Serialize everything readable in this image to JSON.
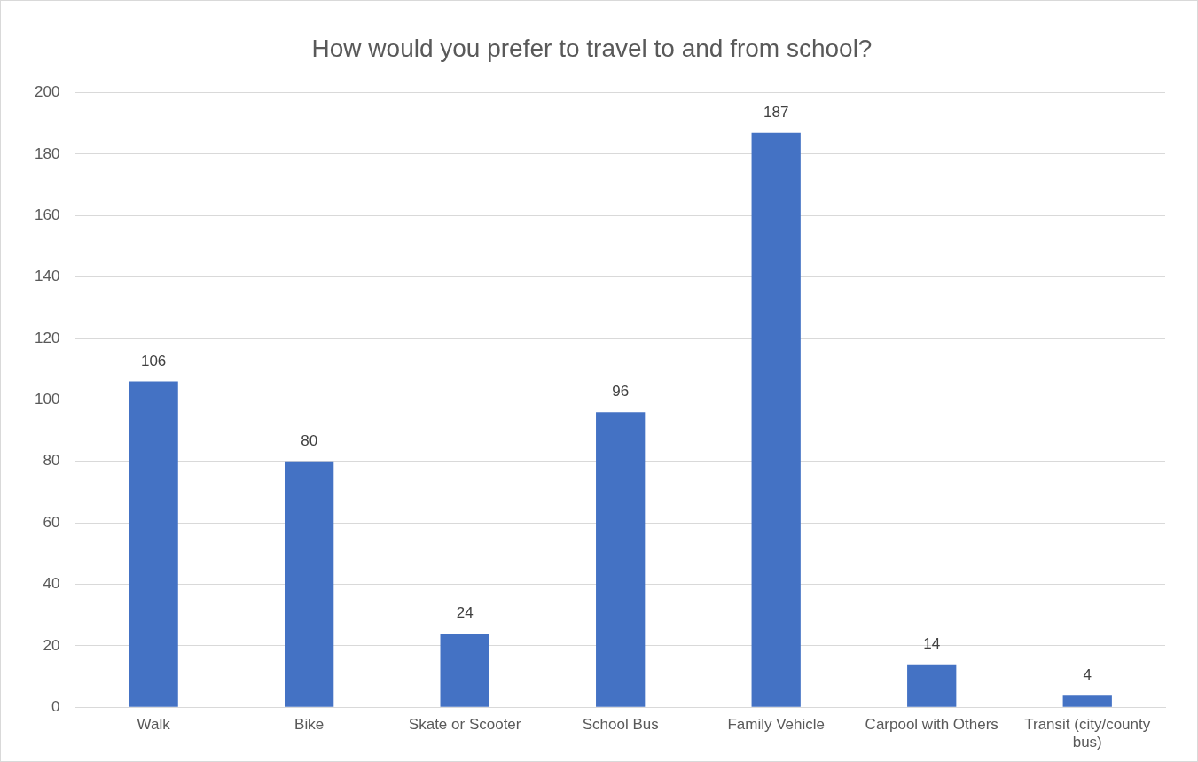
{
  "chart_data": {
    "type": "bar",
    "title": "How would you prefer to travel to and from school?",
    "categories": [
      "Walk",
      "Bike",
      "Skate or Scooter",
      "School Bus",
      "Family Vehicle",
      "Carpool with Others",
      "Transit (city/county bus)"
    ],
    "values": [
      106,
      80,
      24,
      96,
      187,
      14,
      4
    ],
    "color": "#4472c4",
    "ylim": [
      0,
      200
    ],
    "yticks": [
      0,
      20,
      40,
      60,
      80,
      100,
      120,
      140,
      160,
      180,
      200
    ],
    "grid": "y",
    "data_labels": true,
    "legend": false
  }
}
